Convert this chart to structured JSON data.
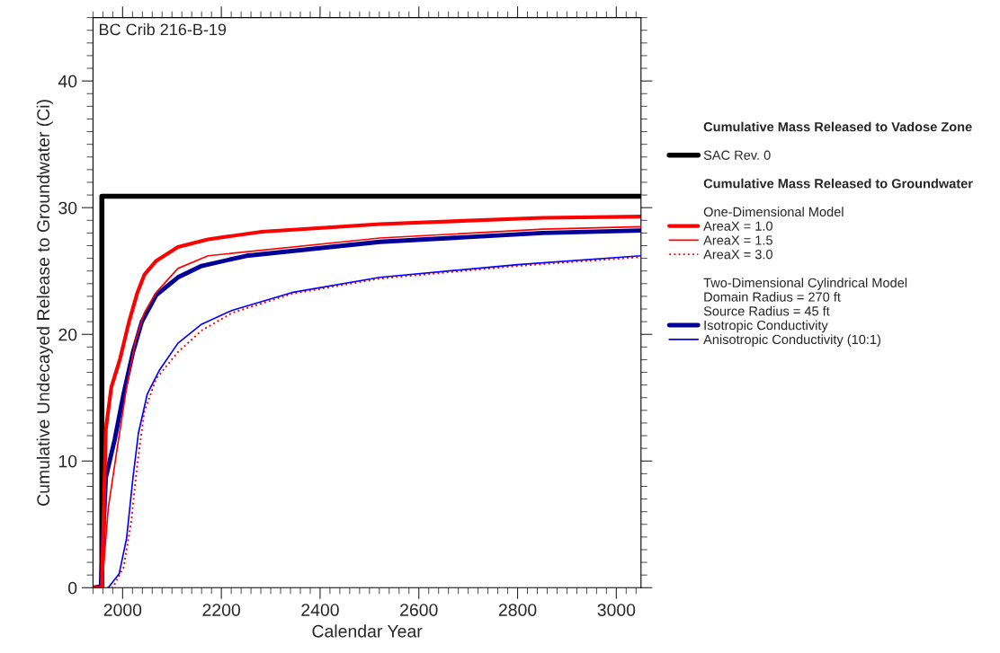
{
  "chart_data": {
    "type": "line",
    "title": "BC Crib 216-B-19",
    "xlabel": "Calendar Year",
    "ylabel": "Cumulative Undecayed Release to Groundwater (Ci)",
    "xlim": [
      1940,
      3050
    ],
    "xticks": [
      2000,
      2200,
      2400,
      2600,
      2800,
      3000
    ],
    "ylim": [
      0,
      45
    ],
    "yticks": [
      0,
      10,
      20,
      30,
      40
    ],
    "grid": false,
    "legend": "right",
    "line_style": "solid",
    "annotations": [
      "Cumulative Mass Released to Vadose Zone",
      "Cumulative Mass Released to Groundwater",
      "One-Dimensional Model",
      "Two-Dimensional Cylindrical Model",
      "Domain Radius = 270 ft",
      "Source Radius = 45 ft"
    ],
    "series": [
      {
        "name": "SAC Rev. 0",
        "color": "#000000",
        "x": [
          1958,
          1958,
          3050
        ],
        "values": [
          0,
          30.9,
          30.9
        ]
      },
      {
        "name": "AreaX = 1.0",
        "color": "#ff0000",
        "x": [
          1940,
          1958,
          1966,
          1977,
          1995,
          2013,
          2030,
          2044,
          2068,
          2112,
          2173,
          2282,
          2521,
          2850,
          3050
        ],
        "values": [
          0,
          0,
          12.5,
          15.8,
          18.1,
          21.0,
          23.3,
          24.7,
          25.8,
          26.9,
          27.5,
          28.1,
          28.7,
          29.2,
          29.3
        ]
      },
      {
        "name": "AreaX = 1.5",
        "color": "#ff0000",
        "x": [
          1940,
          1958,
          1971,
          1989,
          2008,
          2026,
          2044,
          2068,
          2112,
          2173,
          2521,
          2850,
          3050
        ],
        "values": [
          0,
          0,
          6.3,
          11.0,
          15.8,
          19.5,
          21.7,
          23.3,
          25.2,
          26.2,
          27.6,
          28.3,
          28.5
        ]
      },
      {
        "name": "AreaX = 3.0",
        "color": "#ff0000",
        "line_style": "dotted",
        "x": [
          1940,
          1980,
          2002,
          2017,
          2030,
          2044,
          2068,
          2112,
          2160,
          2222,
          2343,
          2521,
          2800,
          3050
        ],
        "values": [
          0,
          0,
          1.6,
          5.1,
          9.8,
          13.9,
          16.5,
          18.6,
          20.3,
          21.7,
          23.2,
          24.4,
          25.4,
          26.1
        ]
      },
      {
        "name": "Isotropic Conductivity",
        "color": "#000099",
        "x": [
          1940,
          1956,
          1966,
          1984,
          2002,
          2021,
          2039,
          2068,
          2112,
          2160,
          2251,
          2521,
          2850,
          3050
        ],
        "values": [
          0,
          0.1,
          8.7,
          11.7,
          15.3,
          18.6,
          21.0,
          23.1,
          24.5,
          25.4,
          26.2,
          27.3,
          28.0,
          28.2
        ]
      },
      {
        "name": "Anisotropic Conductivity (10:1)",
        "color": "#0000ff",
        "x": [
          1971,
          1993,
          2008,
          2021,
          2032,
          2050,
          2075,
          2112,
          2160,
          2222,
          2343,
          2521,
          2800,
          3050
        ],
        "values": [
          0,
          1.1,
          3.9,
          8.7,
          12.2,
          15.3,
          17.2,
          19.3,
          20.8,
          21.9,
          23.3,
          24.5,
          25.5,
          26.2
        ]
      }
    ]
  }
}
